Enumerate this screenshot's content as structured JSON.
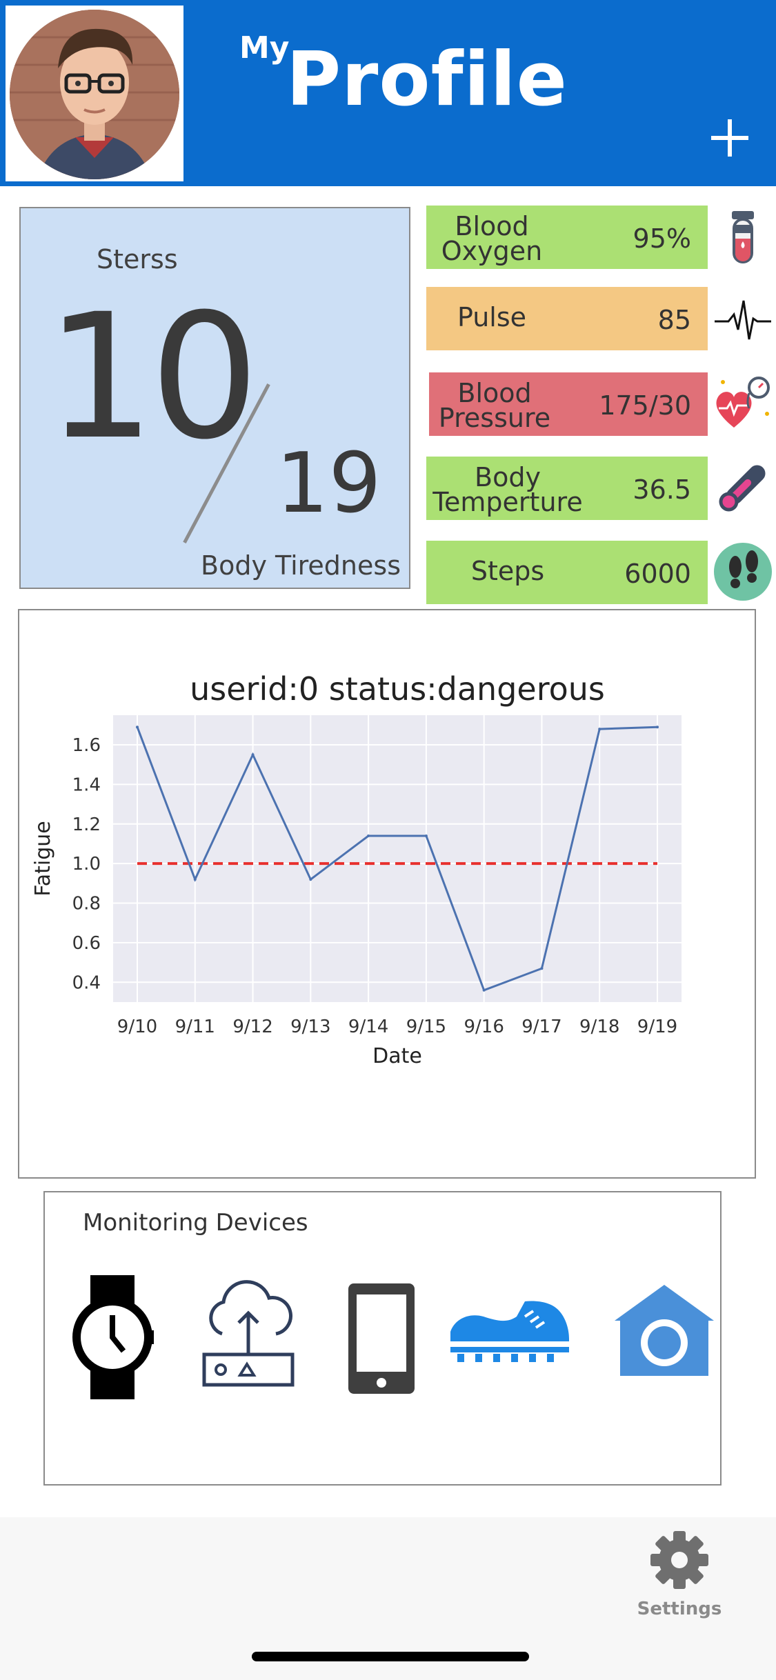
{
  "header": {
    "title_prefix": "My",
    "title": "Profile"
  },
  "stress": {
    "label": "Sterss",
    "value": "10",
    "max": "19",
    "caption": "Body Tiredness"
  },
  "vitals": [
    {
      "name_line1": "Blood",
      "name_line2": "Oxygen",
      "value": "95%",
      "color": "#abe073",
      "icon": "test-tube-icon"
    },
    {
      "name_line1": "Pulse",
      "name_line2": "",
      "value": "85",
      "color": "#f4c883",
      "icon": "heartbeat-icon"
    },
    {
      "name_line1": "Blood",
      "name_line2": "Pressure",
      "value": "175/30",
      "color": "#e07078",
      "icon": "blood-pressure-icon"
    },
    {
      "name_line1": "Body",
      "name_line2": "Temperture",
      "value": "36.5",
      "color": "#abe073",
      "icon": "thermometer-icon"
    },
    {
      "name_line1": "Steps",
      "name_line2": "",
      "value": "6000",
      "color": "#abe073",
      "icon": "footprints-icon"
    }
  ],
  "chart_data": {
    "type": "line",
    "title": "userid:0  status:dangerous",
    "xlabel": "Date",
    "ylabel": "Fatigue",
    "categories": [
      "9/10",
      "9/11",
      "9/12",
      "9/13",
      "9/14",
      "9/15",
      "9/16",
      "9/17",
      "9/18",
      "9/19"
    ],
    "series": [
      {
        "values": [
          1.69,
          0.92,
          1.55,
          0.92,
          1.14,
          1.14,
          0.36,
          0.47,
          1.68,
          1.69
        ],
        "color": "#4c72b0"
      }
    ],
    "threshold": {
      "value": 1.0,
      "color": "#e8302e",
      "style": "dashed"
    },
    "yticks": [
      0.4,
      0.6,
      0.8,
      1.0,
      1.2,
      1.4,
      1.6
    ],
    "ylim": [
      0.3,
      1.75
    ],
    "grid": true,
    "background": "#eaeaf2"
  },
  "devices": {
    "title": "Monitoring Devices",
    "items": [
      "watch-icon",
      "cloud-upload-device-icon",
      "smartphone-icon",
      "sneaker-icon",
      "home-camera-icon"
    ]
  },
  "tabbar": {
    "settings_label": "Settings"
  }
}
